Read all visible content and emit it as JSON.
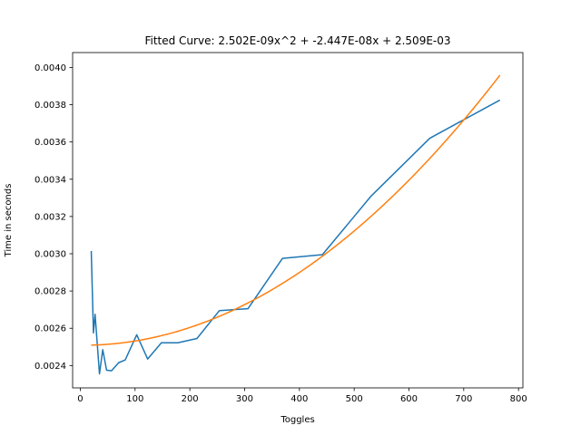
{
  "chart_data": {
    "type": "line",
    "title": "Fitted Curve: 2.502E-09x^2 + -2.447E-08x + 2.509E-03",
    "xlabel": "Toggles",
    "ylabel": "Time in seconds",
    "xlim": [
      -14,
      808
    ],
    "ylim": [
      0.00228,
      0.00408
    ],
    "xticks": [
      0,
      100,
      200,
      300,
      400,
      500,
      600,
      700,
      800
    ],
    "yticks": [
      0.0024,
      0.0026,
      0.0028,
      0.003,
      0.0032,
      0.0034,
      0.0036,
      0.0038,
      0.004
    ],
    "xtick_labels": [
      "0",
      "100",
      "200",
      "300",
      "400",
      "500",
      "600",
      "700",
      "800"
    ],
    "ytick_labels": [
      "0.0024",
      "0.0026",
      "0.0028",
      "0.0030",
      "0.0032",
      "0.0034",
      "0.0036",
      "0.0038",
      "0.0040"
    ],
    "grid": false,
    "series": [
      {
        "color": "#1f77b4",
        "x": [
          20,
          24,
          27,
          30,
          35,
          41,
          48,
          57,
          70,
          82,
          103,
          123,
          148,
          178,
          213,
          254,
          306,
          369,
          442,
          531,
          638,
          766
        ],
        "y": [
          0.003015,
          0.002575,
          0.002675,
          0.002555,
          0.002355,
          0.002485,
          0.002375,
          0.002372,
          0.002415,
          0.00243,
          0.002565,
          0.002435,
          0.002522,
          0.002522,
          0.002545,
          0.002695,
          0.002705,
          0.002975,
          0.002995,
          0.00331,
          0.00362,
          0.003825
        ]
      },
      {
        "color": "#ff7f0e",
        "fit": {
          "a": 2.502e-09,
          "b": -2.447e-08,
          "c": 0.002509,
          "x_range": [
            20,
            766
          ]
        }
      }
    ]
  }
}
